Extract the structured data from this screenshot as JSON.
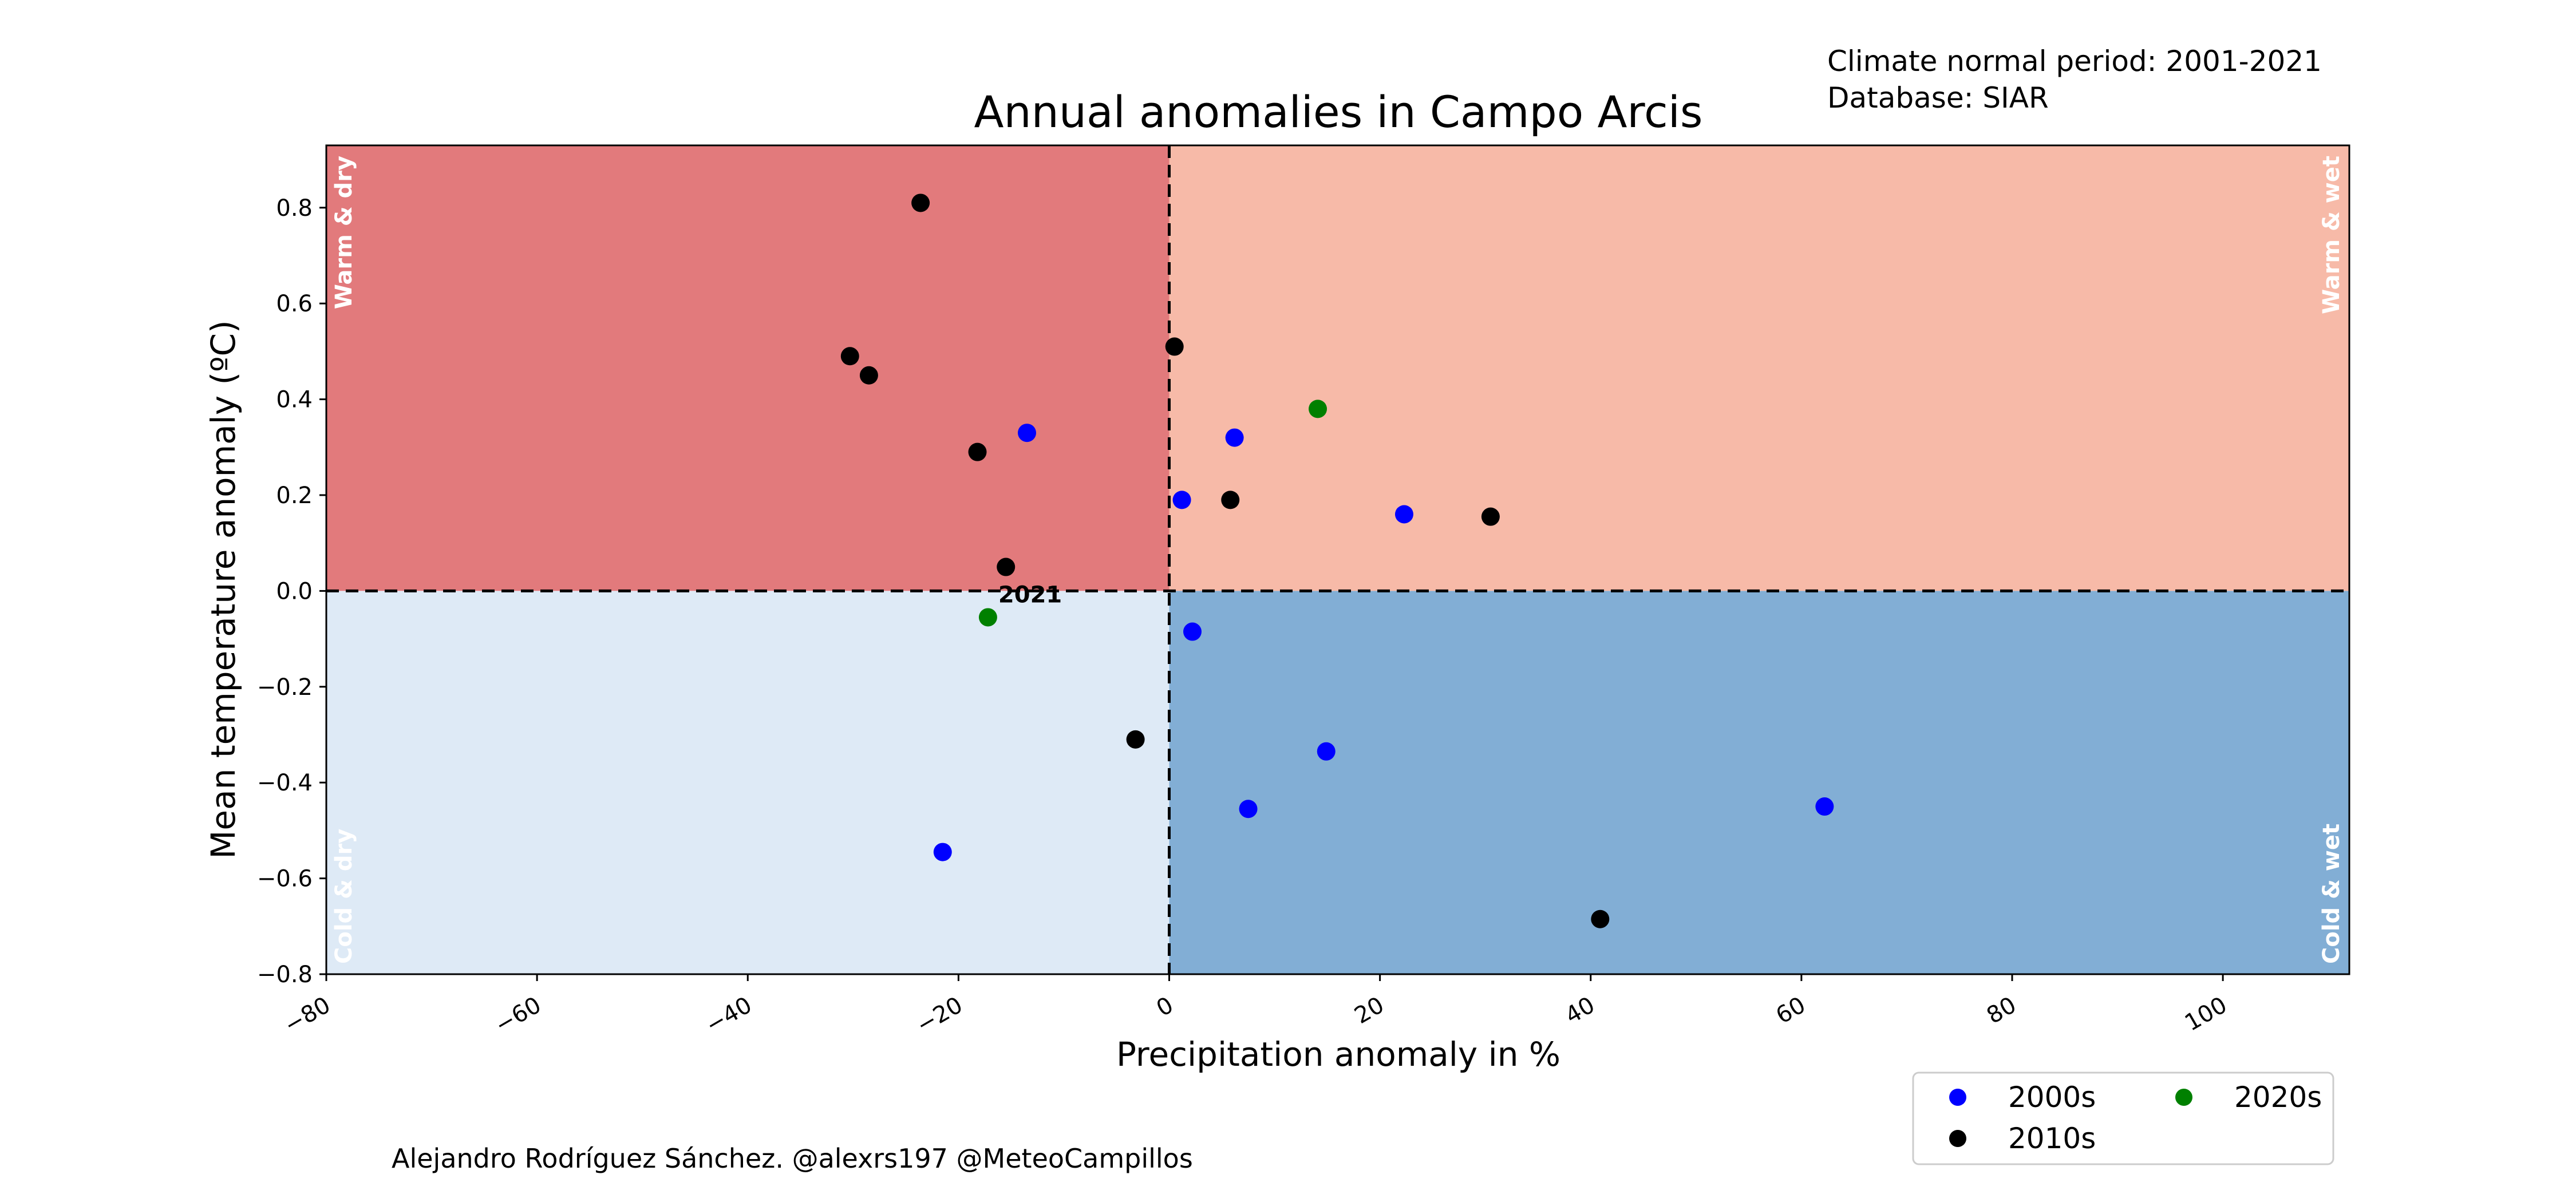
{
  "info": {
    "line1": "Climate normal period: 2001-2021",
    "line2": "Database: SIAR"
  },
  "credit": "Alejandro Rodríguez Sánchez. @alexrs197 @MeteoCampillos",
  "chart_data": {
    "type": "scatter",
    "title": "Annual anomalies in Campo Arcis",
    "xlabel": "Precipitation anomaly in %",
    "ylabel": "Mean temperature anomaly (ºC)",
    "xlim": [
      -80,
      112
    ],
    "ylim": [
      -0.8,
      0.93
    ],
    "x_ticks": [
      -80,
      -60,
      -40,
      -20,
      0,
      20,
      40,
      60,
      80,
      100
    ],
    "x_tick_labels": [
      "−80",
      "−60",
      "−40",
      "−20",
      "0",
      "20",
      "40",
      "60",
      "80",
      "100"
    ],
    "y_ticks": [
      -0.8,
      -0.6,
      -0.4,
      -0.2,
      0.0,
      0.2,
      0.4,
      0.6,
      0.8
    ],
    "y_tick_labels": [
      "−0.8",
      "−0.6",
      "−0.4",
      "−0.2",
      "0.0",
      "0.2",
      "0.4",
      "0.6",
      "0.8"
    ],
    "grid": false,
    "reference_lines": {
      "x": 0,
      "y": 0,
      "style": "dashed"
    },
    "quadrants": [
      {
        "label": "Warm & dry",
        "x": [
          -80,
          0
        ],
        "y": [
          0,
          0.93
        ],
        "color": "#e27a7c",
        "label_corner": "top-left"
      },
      {
        "label": "Warm & wet",
        "x": [
          0,
          112
        ],
        "y": [
          0,
          0.93
        ],
        "color": "#f7baa8",
        "label_corner": "top-right"
      },
      {
        "label": "Cold & dry",
        "x": [
          -80,
          0
        ],
        "y": [
          -0.8,
          0
        ],
        "color": "#deeaf6",
        "label_corner": "bottom-left"
      },
      {
        "label": "Cold & wet",
        "x": [
          0,
          112
        ],
        "y": [
          -0.8,
          0
        ],
        "color": "#82aed5",
        "label_corner": "bottom-right"
      }
    ],
    "legend": {
      "placement": "bottom-right, below axes",
      "columns": 2
    },
    "series": [
      {
        "name": "2000s",
        "color": "#0000ff",
        "points": [
          {
            "x": -13.5,
            "y": 0.33
          },
          {
            "x": 6.2,
            "y": 0.32
          },
          {
            "x": 1.2,
            "y": 0.19
          },
          {
            "x": 22.3,
            "y": 0.16
          },
          {
            "x": 2.2,
            "y": -0.085
          },
          {
            "x": 14.9,
            "y": -0.335
          },
          {
            "x": 7.5,
            "y": -0.455
          },
          {
            "x": 62.2,
            "y": -0.45
          },
          {
            "x": -21.5,
            "y": -0.545
          }
        ]
      },
      {
        "name": "2010s",
        "color": "#000000",
        "points": [
          {
            "x": -23.6,
            "y": 0.81
          },
          {
            "x": -30.3,
            "y": 0.49
          },
          {
            "x": -28.5,
            "y": 0.45
          },
          {
            "x": 0.5,
            "y": 0.51
          },
          {
            "x": -18.2,
            "y": 0.29
          },
          {
            "x": 5.8,
            "y": 0.19
          },
          {
            "x": 30.5,
            "y": 0.155
          },
          {
            "x": -15.5,
            "y": 0.05
          },
          {
            "x": -3.2,
            "y": -0.31
          },
          {
            "x": 40.9,
            "y": -0.685
          }
        ]
      },
      {
        "name": "2020s",
        "color": "#008000",
        "points": [
          {
            "x": 14.1,
            "y": 0.38
          },
          {
            "x": -17.2,
            "y": -0.055,
            "label": "2021"
          }
        ]
      }
    ]
  }
}
